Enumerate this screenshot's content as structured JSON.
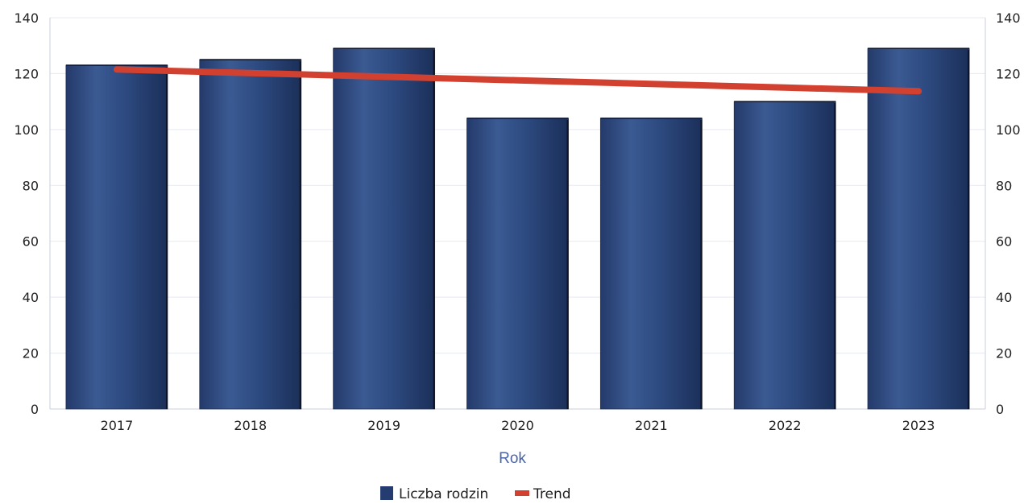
{
  "chart_data": {
    "type": "bar",
    "title": "",
    "xlabel": "Rok",
    "ylabel": "",
    "categories": [
      "2017",
      "2018",
      "2019",
      "2020",
      "2021",
      "2022",
      "2023"
    ],
    "series": [
      {
        "name": "Liczba rodzin",
        "type": "bar",
        "values": [
          123,
          125,
          129,
          104,
          104,
          110,
          129
        ],
        "color": "#243c6f"
      },
      {
        "name": "Trend",
        "type": "line",
        "values": [
          121.5,
          120.2,
          118.9,
          117.6,
          116.3,
          115.0,
          113.7
        ],
        "color": "#d2412f"
      }
    ],
    "ylim": [
      0,
      140
    ],
    "y_ticks": [
      0,
      20,
      40,
      60,
      80,
      100,
      120,
      140
    ],
    "y2_ticks": [
      0,
      20,
      40,
      60,
      80,
      100,
      120,
      140
    ],
    "grid": true,
    "legend": "bottom-center"
  }
}
